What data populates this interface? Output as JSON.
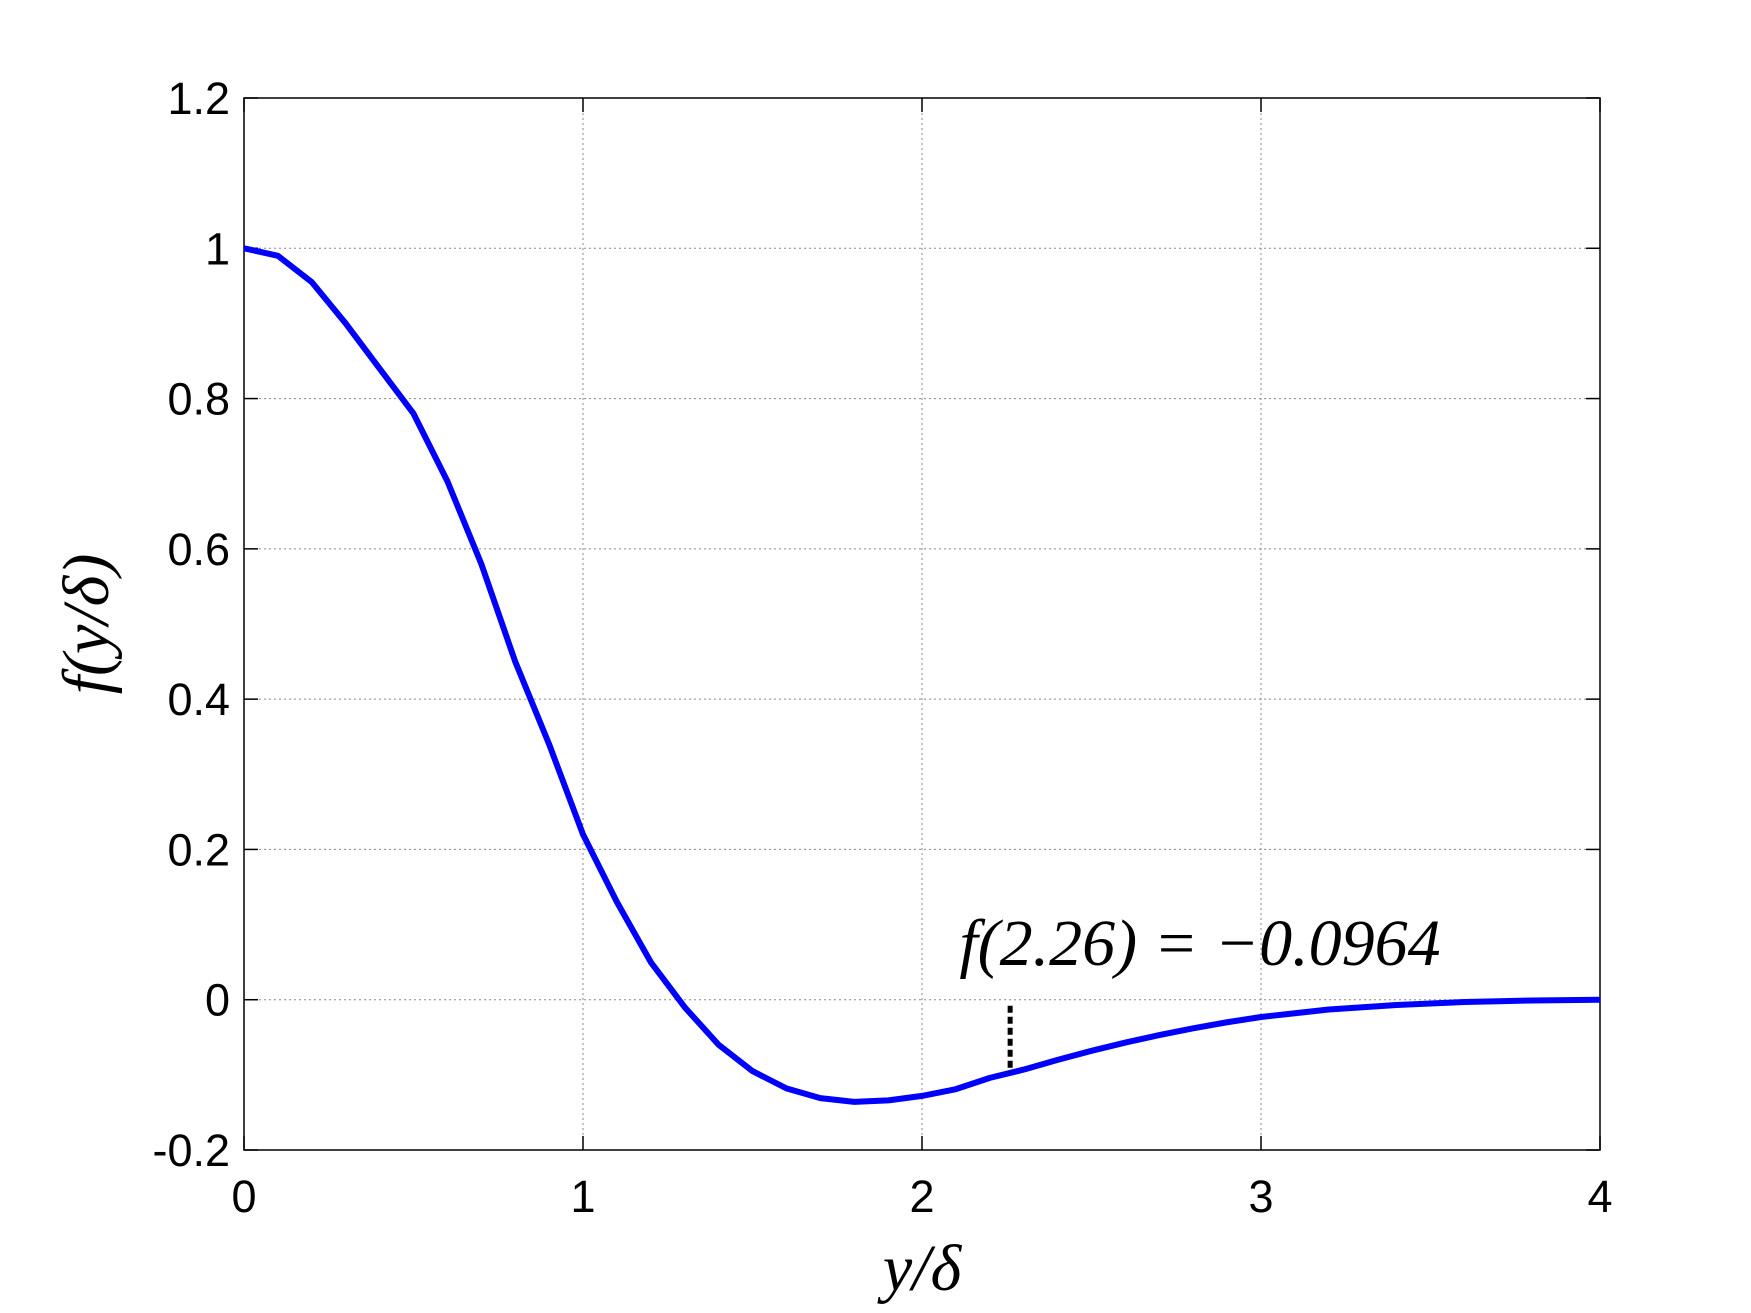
{
  "chart_data": {
    "type": "line",
    "x_label": "y/δ",
    "y_label": "f(y/δ)",
    "x": [
      0,
      0.1,
      0.2,
      0.3,
      0.4,
      0.5,
      0.6,
      0.7,
      0.8,
      0.9,
      1.0,
      1.1,
      1.2,
      1.3,
      1.4,
      1.5,
      1.6,
      1.7,
      1.8,
      1.9,
      2.0,
      2.1,
      2.2,
      2.3,
      2.4,
      2.5,
      2.6,
      2.7,
      2.8,
      2.9,
      3.0,
      3.1,
      3.2,
      3.3,
      3.4,
      3.5,
      3.6,
      3.7,
      3.8,
      3.9,
      4.0
    ],
    "series": [
      {
        "color": "#0000ff",
        "values": [
          1,
          0.99,
          0.955,
          0.9,
          0.84,
          0.78,
          0.69,
          0.58,
          0.45,
          0.34,
          0.22,
          0.13,
          0.05,
          -0.01,
          -0.06,
          -0.095,
          -0.118,
          -0.131,
          -0.136,
          -0.134,
          -0.128,
          -0.119,
          -0.104,
          -0.093,
          -0.08,
          -0.068,
          -0.057,
          -0.047,
          -0.038,
          -0.03,
          -0.023,
          -0.018,
          -0.013,
          -0.01,
          -0.007,
          -0.005,
          -0.003,
          -0.002,
          -0.001,
          -0.0005,
          0
        ]
      }
    ],
    "annotation": {
      "text": "f(2.26) = −0.0964",
      "x": 2.26,
      "y": -0.0964
    },
    "xlim": [
      0,
      4
    ],
    "xticks": [
      0,
      1,
      2,
      3,
      4
    ],
    "ylim": [
      -0.2,
      1.2
    ],
    "yticks": [
      -0.2,
      0,
      0.2,
      0.4,
      0.6,
      0.8,
      1,
      1.2
    ],
    "grid": true
  }
}
